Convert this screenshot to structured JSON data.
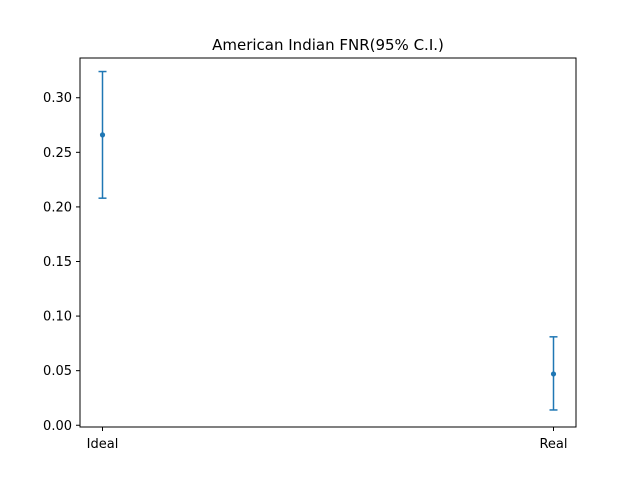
{
  "chart_data": {
    "type": "scatter",
    "title": "American Indian FNR(95% C.I.)",
    "xlabel": "",
    "ylabel": "",
    "categories": [
      "Ideal",
      "Real"
    ],
    "series": [
      {
        "values": [
          0.266,
          0.047
        ],
        "lower": [
          0.208,
          0.014
        ],
        "upper": [
          0.324,
          0.081
        ]
      }
    ],
    "ylim": [
      -0.0016,
      0.3364
    ],
    "yticks": [
      "0.00",
      "0.05",
      "0.10",
      "0.15",
      "0.20",
      "0.25",
      "0.30"
    ],
    "grid": false,
    "legend": "none",
    "color": "#1f77b4"
  }
}
